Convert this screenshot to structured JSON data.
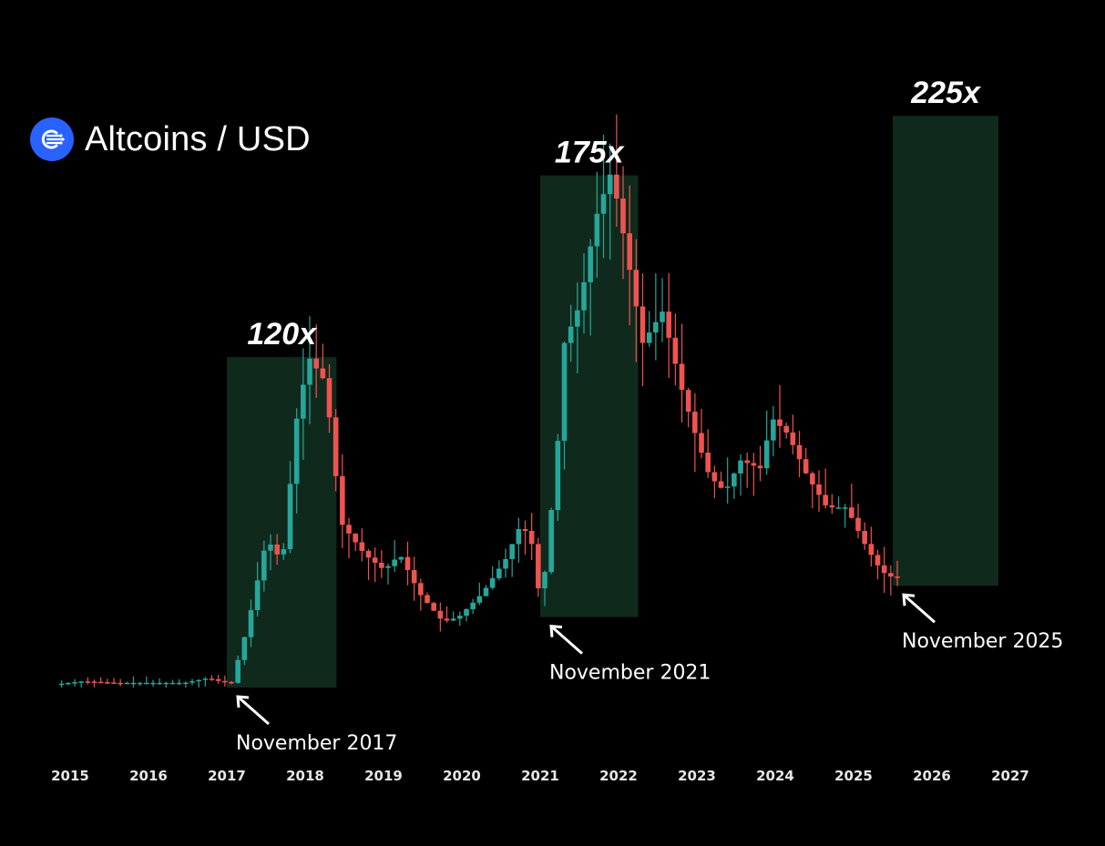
{
  "header": {
    "title": "Altcoins / USD",
    "logo_icon": "altcoin-logo-icon",
    "logo_color": "#2962ff"
  },
  "colors": {
    "background": "#000000",
    "up_candle": "#26a69a",
    "down_candle": "#ef5350",
    "highlight_box": "#0f2a1c",
    "text": "#ffffff"
  },
  "chart_data": {
    "type": "candlestick",
    "x_axis": {
      "tick_labels": [
        "2015",
        "2016",
        "2017",
        "2018",
        "2019",
        "2020",
        "2021",
        "2022",
        "2023",
        "2024",
        "2025",
        "2026",
        "2027"
      ],
      "range": [
        2014.8,
        2027.3
      ]
    },
    "y_axis": {
      "visible": false,
      "range": [
        0,
        4
      ]
    },
    "grid": false,
    "legend": false,
    "price_path": [
      [
        2014.85,
        0.02
      ],
      [
        2015.2,
        0.04
      ],
      [
        2015.6,
        0.03
      ],
      [
        2016.0,
        0.03
      ],
      [
        2016.5,
        0.03
      ],
      [
        2016.8,
        0.06
      ],
      [
        2016.95,
        0.04
      ],
      [
        2017.1,
        0.03
      ],
      [
        2017.3,
        0.38
      ],
      [
        2017.55,
        0.95
      ],
      [
        2017.75,
        0.8
      ],
      [
        2017.95,
        1.8
      ],
      [
        2018.1,
        2.1
      ],
      [
        2018.3,
        1.95
      ],
      [
        2018.5,
        1.05
      ],
      [
        2018.8,
        0.85
      ],
      [
        2019.05,
        0.75
      ],
      [
        2019.25,
        0.85
      ],
      [
        2019.5,
        0.6
      ],
      [
        2019.8,
        0.42
      ],
      [
        2020.0,
        0.45
      ],
      [
        2020.3,
        0.6
      ],
      [
        2020.6,
        0.82
      ],
      [
        2020.8,
        1.05
      ],
      [
        2020.95,
        0.9
      ],
      [
        2021.05,
        0.5
      ],
      [
        2021.25,
        1.45
      ],
      [
        2021.35,
        2.2
      ],
      [
        2021.55,
        2.45
      ],
      [
        2021.75,
        3.0
      ],
      [
        2021.95,
        3.3
      ],
      [
        2022.1,
        2.9
      ],
      [
        2022.35,
        2.2
      ],
      [
        2022.6,
        2.4
      ],
      [
        2022.85,
        1.9
      ],
      [
        2023.0,
        1.65
      ],
      [
        2023.2,
        1.35
      ],
      [
        2023.4,
        1.25
      ],
      [
        2023.6,
        1.45
      ],
      [
        2023.85,
        1.4
      ],
      [
        2024.0,
        1.72
      ],
      [
        2024.2,
        1.62
      ],
      [
        2024.45,
        1.35
      ],
      [
        2024.7,
        1.15
      ],
      [
        2024.95,
        1.15
      ],
      [
        2025.2,
        0.9
      ],
      [
        2025.4,
        0.74
      ],
      [
        2025.55,
        0.7
      ]
    ],
    "annotations": [
      {
        "label": "120x",
        "note": "November 2017",
        "box_x": [
          2017.0,
          2018.4
        ],
        "box_y": [
          0.0,
          2.11
        ]
      },
      {
        "label": "175x",
        "note": "November 2021",
        "box_x": [
          2021.0,
          2022.25
        ],
        "box_y": [
          0.45,
          3.27
        ]
      },
      {
        "label": "225x",
        "note": "November 2025",
        "box_x": [
          2025.5,
          2026.85
        ],
        "box_y": [
          0.65,
          3.65
        ]
      }
    ]
  }
}
